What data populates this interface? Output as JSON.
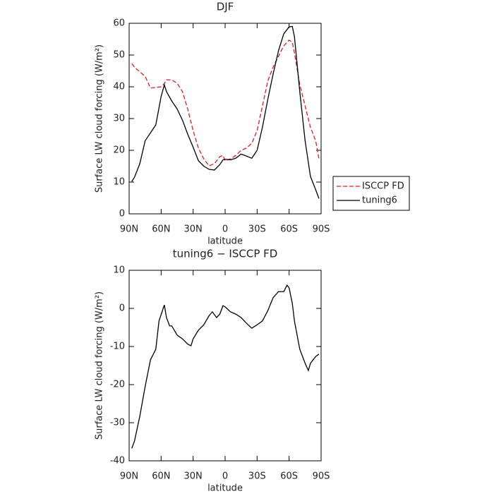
{
  "chart_data": [
    {
      "type": "line",
      "title": "DJF",
      "x_label": "latitude",
      "y_label": "Surface LW cloud forcing (W/m²)",
      "x": [
        87.5,
        85,
        80,
        75,
        70,
        65,
        60,
        57,
        55,
        50,
        45,
        40,
        35,
        30,
        25,
        20,
        15,
        10,
        5,
        2,
        0,
        -5,
        -10,
        -15,
        -20,
        -25,
        -30,
        -35,
        -40,
        -45,
        -50,
        -55,
        -60,
        -63,
        -65,
        -70,
        -75,
        -80,
        -85,
        -88
      ],
      "series": [
        {
          "name": "ISCCP FD",
          "color": "#e41a1c",
          "dashed": true,
          "values": [
            47.3,
            46.2,
            44.7,
            43.3,
            39.6,
            39.8,
            40,
            41,
            42.2,
            42.2,
            41.1,
            38.5,
            32.9,
            26.2,
            20.7,
            17.3,
            15.1,
            15.8,
            18,
            18.4,
            16.7,
            17.3,
            18.4,
            20,
            20.7,
            22.2,
            26.2,
            34,
            41.8,
            46.2,
            49.6,
            52.9,
            54.7,
            54,
            50.7,
            40.7,
            34,
            27.3,
            22.9,
            17.3
          ]
        },
        {
          "name": "tuning6",
          "color": "#000000",
          "dashed": false,
          "values": [
            10.2,
            11.5,
            15.8,
            23,
            25.5,
            28,
            37,
            40.6,
            38.5,
            35.5,
            33,
            29.5,
            25,
            21,
            16.7,
            15,
            14,
            13.8,
            15.5,
            17,
            17.2,
            17,
            17.5,
            18.8,
            18.2,
            17.5,
            20,
            27.3,
            36,
            44,
            51.3,
            56.7,
            58.9,
            59,
            55.8,
            38.5,
            23,
            11.8,
            7.5,
            4.8
          ]
        }
      ],
      "xlim": [
        90,
        -90
      ],
      "xticks": [
        {
          "value": 90,
          "label": "90N"
        },
        {
          "value": 60,
          "label": "60N"
        },
        {
          "value": 30,
          "label": "30N"
        },
        0,
        {
          "value": -30,
          "label": "30S"
        },
        {
          "value": -60,
          "label": "60S"
        },
        {
          "value": -90,
          "label": "90S"
        }
      ],
      "ylim": [
        0,
        60
      ],
      "yticks": [
        0,
        10,
        20,
        30,
        40,
        50,
        60
      ],
      "legend": "right"
    },
    {
      "type": "line",
      "title": "tuning6 − ISCCP FD",
      "x_label": "latitude",
      "y_label": "Surface LW cloud forcing (W/m²)",
      "x": [
        87.5,
        85,
        80,
        75,
        70,
        65,
        62,
        57,
        55,
        52,
        50,
        45,
        40,
        35,
        32,
        30,
        25,
        20,
        15,
        12,
        8,
        5,
        2,
        0,
        -5,
        -10,
        -15,
        -20,
        -25,
        -30,
        -35,
        -40,
        -45,
        -50,
        -55,
        -58,
        -60,
        -63,
        -65,
        -70,
        -75,
        -78,
        -80,
        -85,
        -88
      ],
      "values": [
        -36.7,
        -34.8,
        -28.3,
        -20.5,
        -13.5,
        -10.7,
        -3.3,
        0.9,
        -2.4,
        -4.6,
        -4.6,
        -7,
        -8,
        -9.4,
        -9.8,
        -8,
        -5.7,
        -4.3,
        -1.9,
        -0.9,
        -2.4,
        -1.5,
        0.7,
        0.4,
        -0.9,
        -1.5,
        -2.4,
        -3.9,
        -5.2,
        -4.3,
        -3.3,
        -0.6,
        2.8,
        4.4,
        4.4,
        6.1,
        5.4,
        1.3,
        -3.3,
        -10.7,
        -14.4,
        -16.3,
        -14.4,
        -12.6,
        -12
      ],
      "color": "#000000",
      "xlim": [
        90,
        -90
      ],
      "xticks": [
        {
          "value": 90,
          "label": "90N"
        },
        {
          "value": 60,
          "label": "60N"
        },
        {
          "value": 30,
          "label": "30N"
        },
        0,
        {
          "value": -30,
          "label": "30S"
        },
        {
          "value": -60,
          "label": "60S"
        },
        {
          "value": -90,
          "label": "90S"
        }
      ],
      "ylim": [
        -40,
        10
      ],
      "yticks": [
        -40,
        -30,
        -20,
        -10,
        0,
        10
      ]
    }
  ]
}
